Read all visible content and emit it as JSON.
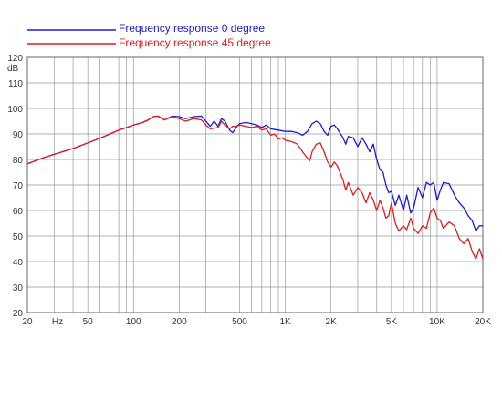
{
  "chart_data": {
    "type": "line",
    "title": "",
    "xlabel": "",
    "ylabel": "dB",
    "x_scale": "log",
    "xlim": [
      20,
      20000
    ],
    "ylim": [
      20,
      120
    ],
    "grid": true,
    "legend_position": "top-left, above plot",
    "x_tick_values": [
      20,
      50,
      100,
      200,
      500,
      1000,
      2000,
      5000,
      10000,
      20000
    ],
    "x_tick_labels": [
      "20",
      "50",
      "100",
      "200",
      "500",
      "1K",
      "2K",
      "5K",
      "10K",
      "20K"
    ],
    "x_unit_label": "Hz",
    "y_ticks": [
      20,
      30,
      40,
      50,
      60,
      70,
      80,
      90,
      100,
      110,
      120
    ],
    "series": [
      {
        "name": "Frequency response 0 degree",
        "color": "#1a1adc",
        "points": [
          [
            20,
            78.3
          ],
          [
            25,
            80.5
          ],
          [
            30,
            82
          ],
          [
            40,
            84.3
          ],
          [
            50,
            86.5
          ],
          [
            60,
            88.3
          ],
          [
            70,
            90
          ],
          [
            80,
            91.5
          ],
          [
            90,
            92.5
          ],
          [
            100,
            93.5
          ],
          [
            115,
            94.5
          ],
          [
            125,
            95.5
          ],
          [
            135,
            96.8
          ],
          [
            145,
            97
          ],
          [
            160,
            95.5
          ],
          [
            180,
            97
          ],
          [
            200,
            96.8
          ],
          [
            220,
            96
          ],
          [
            250,
            96.8
          ],
          [
            280,
            97
          ],
          [
            300,
            95
          ],
          [
            320,
            93
          ],
          [
            340,
            95
          ],
          [
            360,
            93
          ],
          [
            380,
            96
          ],
          [
            400,
            95
          ],
          [
            430,
            91.5
          ],
          [
            450,
            90.5
          ],
          [
            480,
            93
          ],
          [
            500,
            94
          ],
          [
            550,
            94.5
          ],
          [
            600,
            94
          ],
          [
            650,
            93.5
          ],
          [
            700,
            92.5
          ],
          [
            750,
            93.5
          ],
          [
            800,
            92
          ],
          [
            900,
            91.5
          ],
          [
            1000,
            91
          ],
          [
            1100,
            91
          ],
          [
            1200,
            90.5
          ],
          [
            1300,
            89.5
          ],
          [
            1400,
            91
          ],
          [
            1500,
            94
          ],
          [
            1600,
            95
          ],
          [
            1700,
            94
          ],
          [
            1800,
            91
          ],
          [
            1900,
            89.5
          ],
          [
            2000,
            93
          ],
          [
            2100,
            93.5
          ],
          [
            2200,
            92
          ],
          [
            2400,
            88.5
          ],
          [
            2500,
            86
          ],
          [
            2600,
            89
          ],
          [
            2800,
            88.5
          ],
          [
            3000,
            85
          ],
          [
            3200,
            88.5
          ],
          [
            3400,
            86
          ],
          [
            3600,
            83
          ],
          [
            3800,
            86
          ],
          [
            4000,
            80
          ],
          [
            4200,
            76
          ],
          [
            4400,
            75
          ],
          [
            4600,
            70
          ],
          [
            4800,
            67
          ],
          [
            5000,
            67.5
          ],
          [
            5300,
            62
          ],
          [
            5600,
            66
          ],
          [
            6000,
            60
          ],
          [
            6300,
            66
          ],
          [
            6700,
            59
          ],
          [
            7000,
            61
          ],
          [
            7500,
            69
          ],
          [
            8000,
            65
          ],
          [
            8500,
            71
          ],
          [
            9000,
            70
          ],
          [
            9500,
            71
          ],
          [
            10000,
            64
          ],
          [
            10500,
            68
          ],
          [
            11000,
            71
          ],
          [
            12000,
            70.5
          ],
          [
            13000,
            66
          ],
          [
            14000,
            63
          ],
          [
            15000,
            61
          ],
          [
            16000,
            58
          ],
          [
            17000,
            56
          ],
          [
            18000,
            52
          ],
          [
            19000,
            54
          ],
          [
            20000,
            54
          ]
        ]
      },
      {
        "name": "Frequency response 45 degree",
        "color": "#e01c1c",
        "points": [
          [
            20,
            78.3
          ],
          [
            25,
            80.5
          ],
          [
            30,
            82
          ],
          [
            40,
            84.3
          ],
          [
            50,
            86.5
          ],
          [
            60,
            88.3
          ],
          [
            70,
            90
          ],
          [
            80,
            91.5
          ],
          [
            90,
            92.5
          ],
          [
            100,
            93.5
          ],
          [
            115,
            94.5
          ],
          [
            125,
            95.5
          ],
          [
            135,
            96.8
          ],
          [
            145,
            97
          ],
          [
            160,
            95.5
          ],
          [
            180,
            96.8
          ],
          [
            200,
            96
          ],
          [
            220,
            95
          ],
          [
            250,
            96
          ],
          [
            280,
            95.5
          ],
          [
            300,
            93.5
          ],
          [
            320,
            92
          ],
          [
            360,
            92.5
          ],
          [
            380,
            95
          ],
          [
            400,
            93.5
          ],
          [
            430,
            92
          ],
          [
            450,
            93
          ],
          [
            480,
            93
          ],
          [
            500,
            93.5
          ],
          [
            550,
            93
          ],
          [
            600,
            92.5
          ],
          [
            650,
            93
          ],
          [
            700,
            91.5
          ],
          [
            750,
            92
          ],
          [
            800,
            89.5
          ],
          [
            850,
            90
          ],
          [
            900,
            88
          ],
          [
            950,
            88.5
          ],
          [
            1000,
            87.5
          ],
          [
            1100,
            87
          ],
          [
            1200,
            86
          ],
          [
            1300,
            83
          ],
          [
            1400,
            80.5
          ],
          [
            1450,
            79.5
          ],
          [
            1500,
            83
          ],
          [
            1600,
            86
          ],
          [
            1700,
            86.5
          ],
          [
            1800,
            83
          ],
          [
            1900,
            79
          ],
          [
            2000,
            77
          ],
          [
            2100,
            79
          ],
          [
            2200,
            77.5
          ],
          [
            2400,
            72
          ],
          [
            2500,
            68
          ],
          [
            2600,
            71
          ],
          [
            2800,
            66
          ],
          [
            3000,
            69
          ],
          [
            3200,
            67
          ],
          [
            3400,
            63
          ],
          [
            3600,
            67
          ],
          [
            3800,
            64
          ],
          [
            4000,
            60
          ],
          [
            4200,
            64
          ],
          [
            4400,
            61
          ],
          [
            4600,
            57
          ],
          [
            4800,
            58
          ],
          [
            5000,
            63
          ],
          [
            5300,
            55
          ],
          [
            5600,
            52
          ],
          [
            6000,
            54
          ],
          [
            6300,
            52.5
          ],
          [
            6700,
            57
          ],
          [
            7000,
            53
          ],
          [
            7500,
            51
          ],
          [
            8000,
            54
          ],
          [
            8500,
            53
          ],
          [
            9000,
            59
          ],
          [
            9500,
            61
          ],
          [
            10000,
            57
          ],
          [
            10500,
            56
          ],
          [
            11000,
            53
          ],
          [
            12000,
            55.5
          ],
          [
            13000,
            54
          ],
          [
            14000,
            49
          ],
          [
            15000,
            47
          ],
          [
            16000,
            49
          ],
          [
            17000,
            44
          ],
          [
            18000,
            41
          ],
          [
            19000,
            45
          ],
          [
            20000,
            41
          ]
        ]
      }
    ]
  }
}
